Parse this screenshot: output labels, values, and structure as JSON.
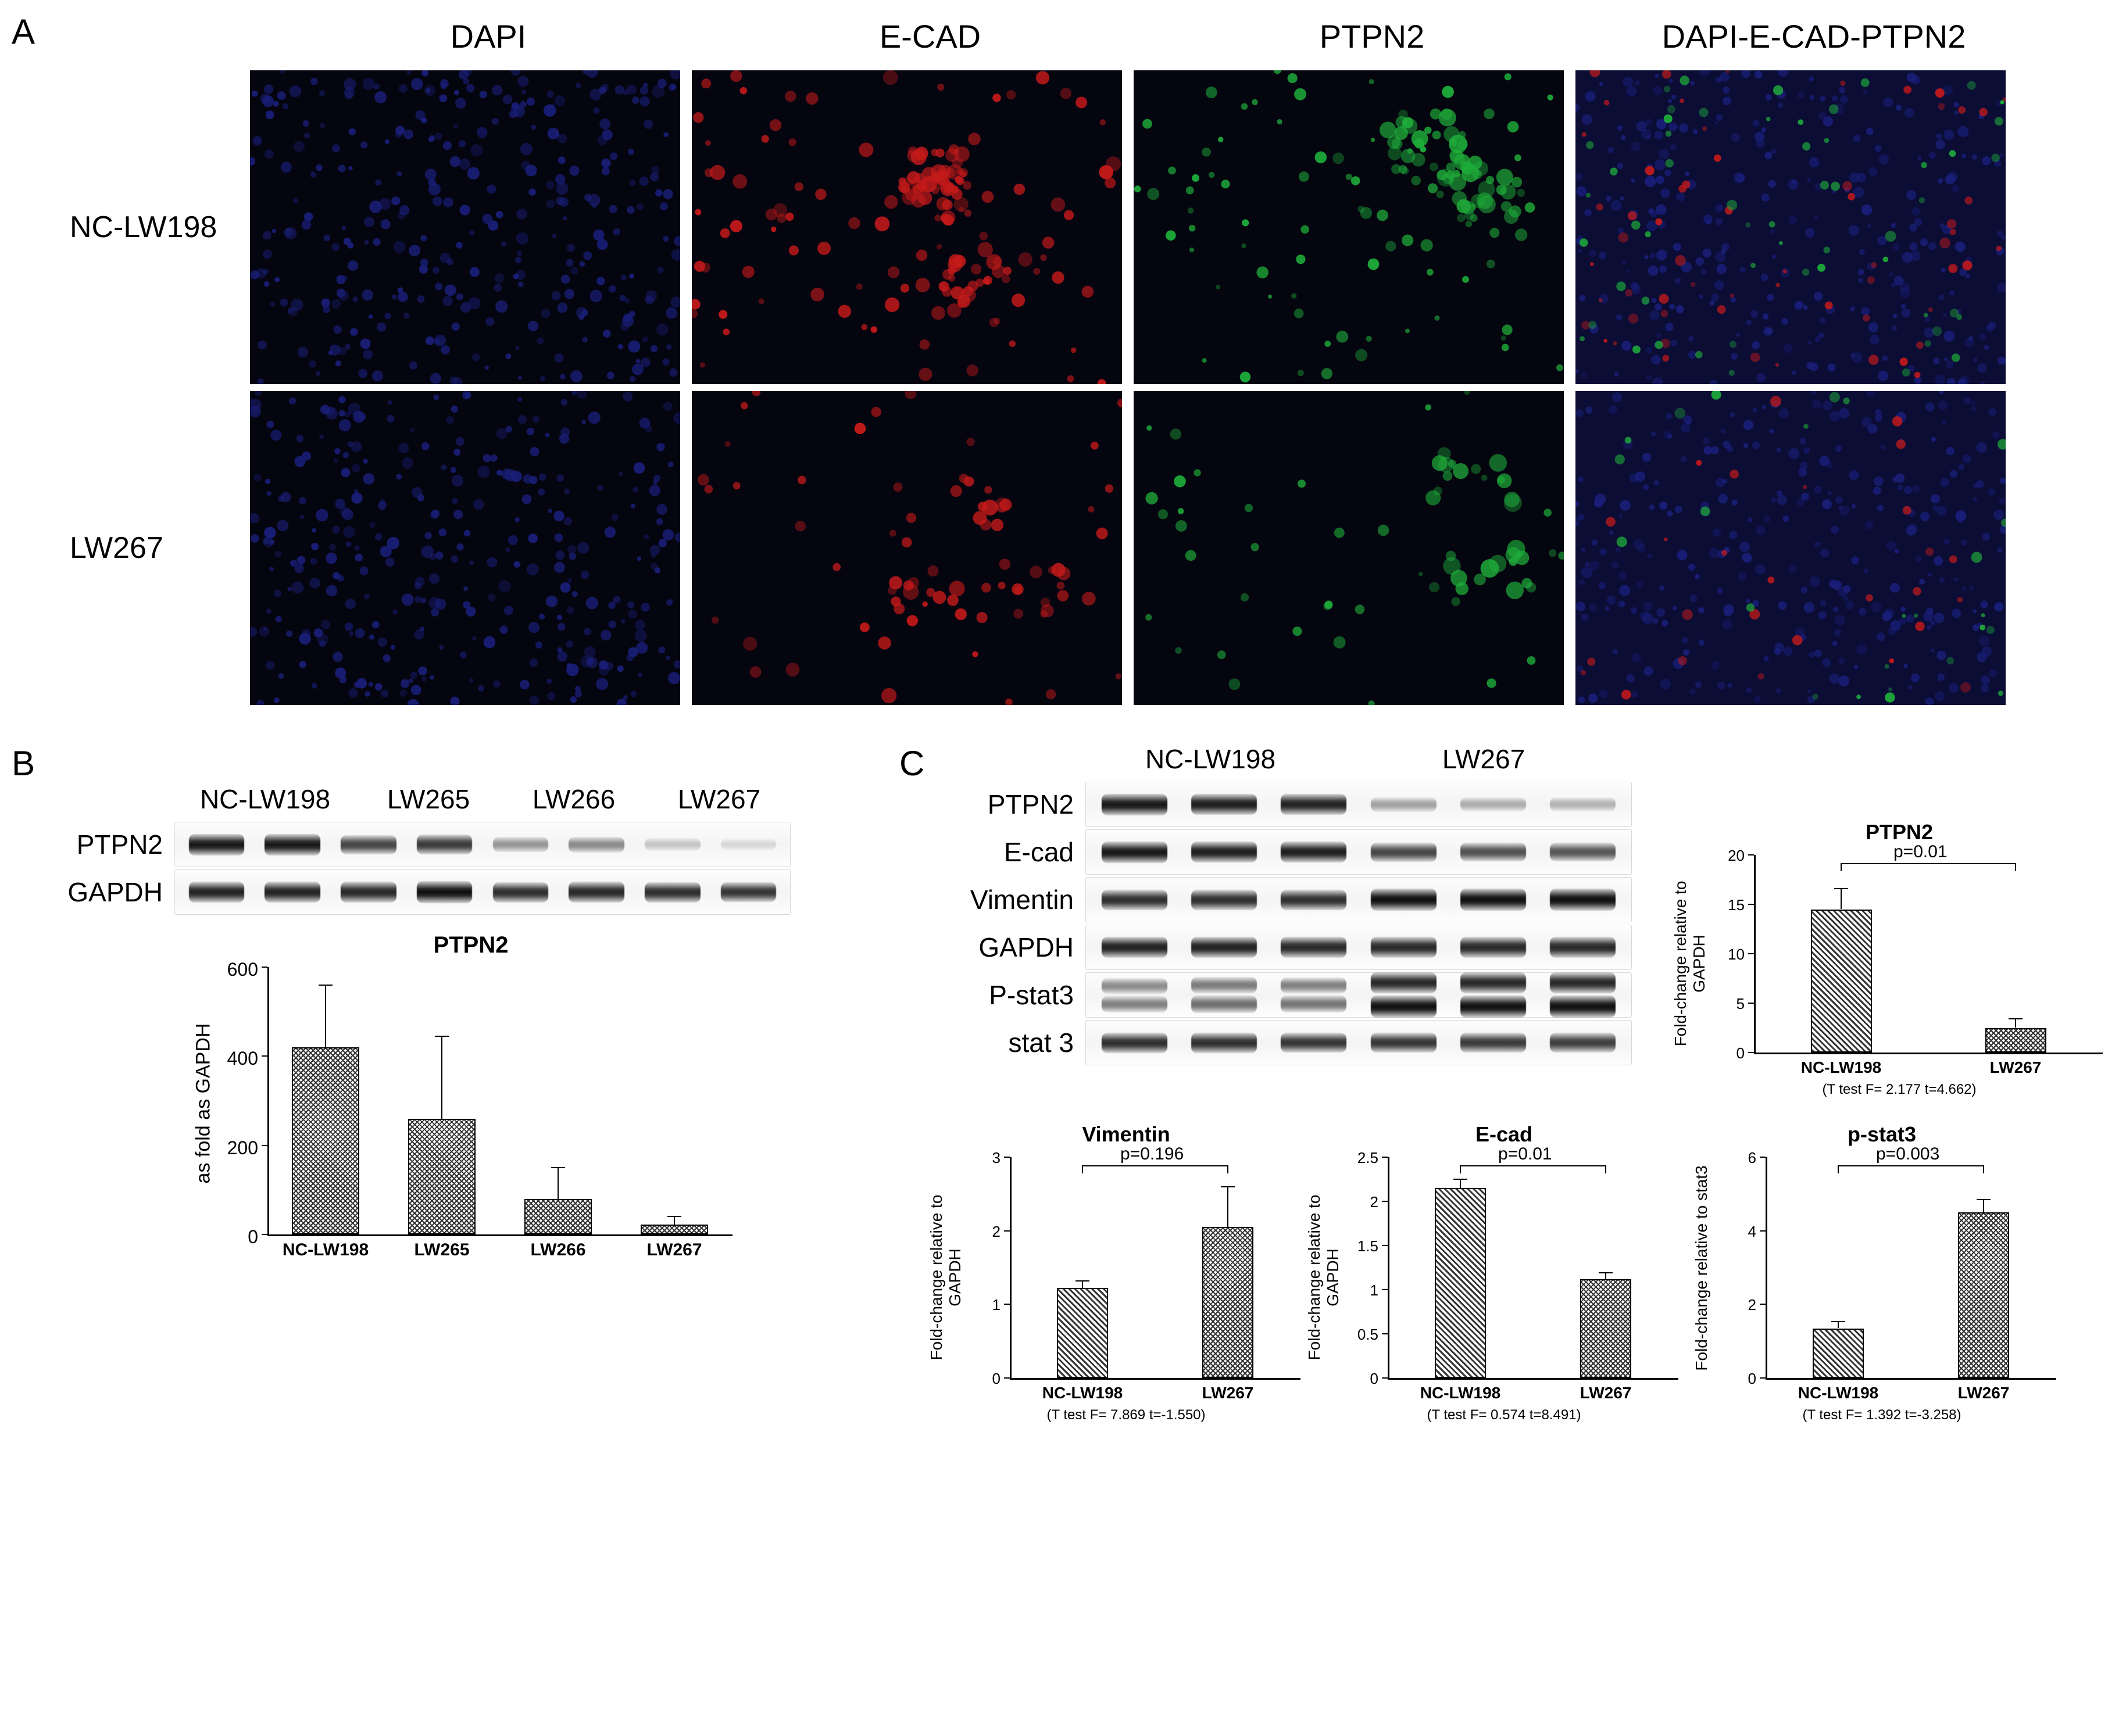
{
  "panelA": {
    "label": "A",
    "columns": [
      "DAPI",
      "E-CAD",
      "PTPN2",
      "DAPI-E-CAD-PTPN2"
    ],
    "rows": [
      "NC-LW198",
      "LW267"
    ],
    "channel_colors": {
      "dapi": "#1a1f7a",
      "ecad": "#c61a1a",
      "ptpn2": "#1fae3a",
      "merge_bg": "#0b0d35"
    }
  },
  "panelB": {
    "label": "B",
    "header": [
      "NC-LW198",
      "LW265",
      "LW266",
      "LW267"
    ],
    "rows": [
      {
        "label": "PTPN2",
        "intensities": [
          0.95,
          0.95,
          0.75,
          0.8,
          0.4,
          0.45,
          0.2,
          0.12
        ]
      },
      {
        "label": "GAPDH",
        "intensities": [
          0.9,
          0.9,
          0.88,
          0.98,
          0.85,
          0.88,
          0.85,
          0.82
        ]
      }
    ],
    "chart": {
      "title": "PTPN2",
      "ylabel": "as fold as GAPDH",
      "categories": [
        "NC-LW198",
        "LW265",
        "LW266",
        "LW267"
      ],
      "values": [
        420,
        260,
        80,
        22
      ],
      "errors": [
        140,
        185,
        70,
        18
      ],
      "ylim": [
        0,
        600
      ],
      "ytick_step": 200,
      "bar_width": 0.58,
      "bar_color": "#555555",
      "axis_color": "#000000",
      "title_fontsize": 40,
      "label_fontsize": 34,
      "xcat_fontsize": 30
    }
  },
  "panelC": {
    "label": "C",
    "header": [
      "NC-LW198",
      "LW267"
    ],
    "rows": [
      {
        "label": "PTPN2",
        "intensities": [
          0.95,
          0.92,
          0.9,
          0.35,
          0.3,
          0.28
        ]
      },
      {
        "label": "E-cad",
        "intensities": [
          0.95,
          0.92,
          0.92,
          0.75,
          0.7,
          0.68
        ]
      },
      {
        "label": "Vimentin",
        "intensities": [
          0.85,
          0.85,
          0.85,
          0.98,
          0.98,
          0.98
        ]
      },
      {
        "label": "GAPDH",
        "intensities": [
          0.9,
          0.9,
          0.88,
          0.88,
          0.88,
          0.88
        ]
      },
      {
        "label": "P-stat3",
        "intensities": [
          0.5,
          0.58,
          0.55,
          0.98,
          0.98,
          0.98
        ],
        "doublet": true
      },
      {
        "label": "stat 3",
        "intensities": [
          0.85,
          0.85,
          0.82,
          0.82,
          0.8,
          0.78
        ]
      }
    ],
    "charts": [
      {
        "id": "ptpn2",
        "title": "PTPN2",
        "ylabel": "Fold-change relative  to GAPDH",
        "categories": [
          "NC-LW198",
          "LW267"
        ],
        "values": [
          14.5,
          2.5
        ],
        "errors": [
          2.1,
          0.9
        ],
        "ylim": [
          0,
          20
        ],
        "ytick_step": 5,
        "pvalue": "p=0.01",
        "ttest": "(T test  F= 2.177  t=4.662)"
      },
      {
        "id": "vimentin",
        "title": "Vimentin",
        "ylabel": "Fold-change relative  to GAPDH",
        "categories": [
          "NC-LW198",
          "LW267"
        ],
        "values": [
          1.22,
          2.05
        ],
        "errors": [
          0.1,
          0.55
        ],
        "ylim": [
          0,
          3
        ],
        "ytick_step": 1,
        "pvalue": "p=0.196",
        "ttest": "(T test  F= 7.869  t=-1.550)"
      },
      {
        "id": "ecad",
        "title": "E-cad",
        "ylabel": "Fold-change relative  to GAPDH",
        "categories": [
          "NC-LW198",
          "LW267"
        ],
        "values": [
          2.15,
          1.12
        ],
        "errors": [
          0.1,
          0.07
        ],
        "ylim": [
          0,
          2.5
        ],
        "ytick_step": 0.5,
        "pvalue": "p=0.01",
        "ttest": "(T test  F= 0.574  t=8.491)"
      },
      {
        "id": "pstat3",
        "title": "p-stat3",
        "ylabel": "Fold-change relative  to stat3",
        "categories": [
          "NC-LW198",
          "LW267"
        ],
        "values": [
          1.35,
          4.5
        ],
        "errors": [
          0.18,
          0.35
        ],
        "ylim": [
          0,
          6
        ],
        "ytick_step": 2,
        "pvalue": "p=0.003",
        "ttest": "(T test  F= 1.392  t=-3.258)"
      }
    ],
    "chart_style": {
      "bar_width": 0.35,
      "bar_colors": [
        "patA",
        "patB"
      ],
      "title_fontsize": 36,
      "label_fontsize": 28,
      "xcat_fontsize": 28,
      "ttest_fontsize": 24
    }
  }
}
